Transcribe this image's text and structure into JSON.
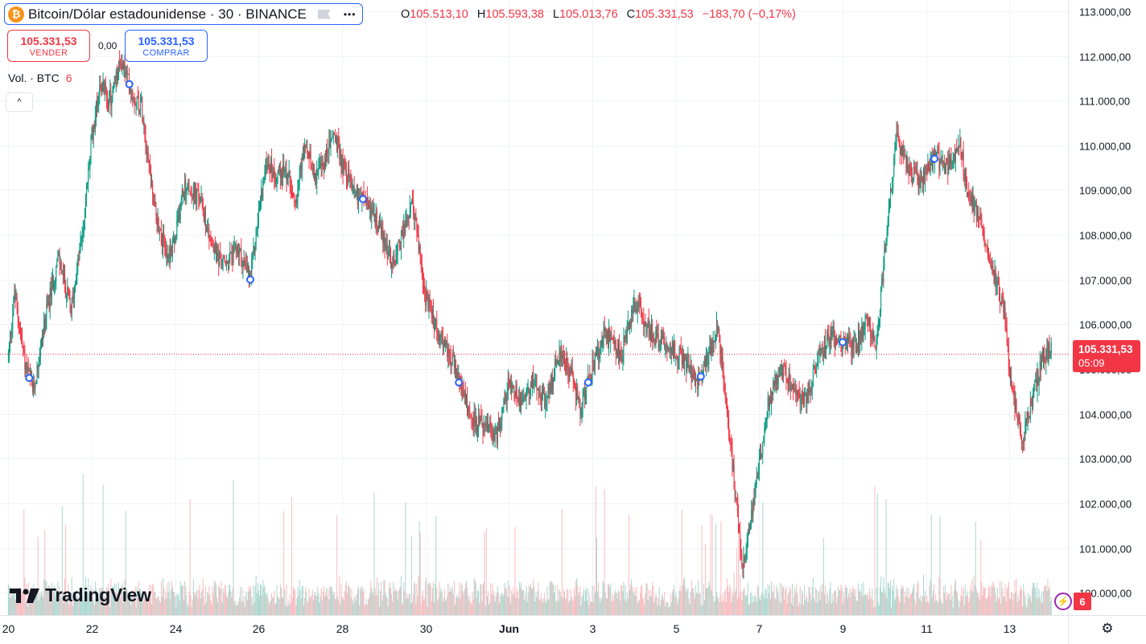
{
  "header": {
    "title": "Bitcoin/Dólar estadounidense · 30 · BINANCE",
    "btc_glyph": "₿",
    "more_glyph": "•••",
    "ohlc": {
      "o_label": "O",
      "o": "105.513,10",
      "h_label": "H",
      "h": "105.593,38",
      "l_label": "L",
      "l": "105.013,76",
      "c_label": "C",
      "c": "105.331,53",
      "change": "−183,70 (−0,17%)"
    }
  },
  "trade": {
    "sell_price": "105.331,53",
    "sell_label": "VENDER",
    "spread": "0,00",
    "buy_price": "105.331,53",
    "buy_label": "COMPRAR"
  },
  "volume_legend": {
    "label": "Vol. · BTC",
    "value": "6"
  },
  "collapse_glyph": "^",
  "last_price": {
    "price": "105.331,53",
    "countdown": "05:09",
    "value": 105331.53
  },
  "alerts": {
    "icon": "alert-clock-icon",
    "glyph": "⚡",
    "count": "6"
  },
  "settings_glyph": "⚙",
  "branding": {
    "logo_text": "TradingView"
  },
  "colors": {
    "up": "#089981",
    "down": "#f23645",
    "up_vol": "#8fc9bf",
    "down_vol": "#f5a6aa",
    "accent": "#2962ff"
  },
  "chart_data": {
    "type": "line",
    "title": "",
    "xlabel": "",
    "ylabel": "",
    "ylim": [
      99500,
      113250
    ],
    "y_ticks": [
      "100.000,00",
      "101.000,00",
      "102.000,00",
      "103.000,00",
      "104.000,00",
      "105.000,00",
      "106.000,00",
      "107.000,00",
      "108.000,00",
      "109.000,00",
      "110.000,00",
      "111.000,00",
      "112.000,00",
      "113.000,00"
    ],
    "y_tick_values": [
      100000,
      101000,
      102000,
      103000,
      104000,
      105000,
      106000,
      107000,
      108000,
      109000,
      110000,
      111000,
      112000,
      113000
    ],
    "x_ticks": [
      "20",
      "22",
      "24",
      "26",
      "28",
      "30",
      "Jun",
      "3",
      "5",
      "7",
      "9",
      "11",
      "13"
    ],
    "x_tick_days": [
      0,
      2,
      4,
      6,
      8,
      10,
      12,
      14,
      16,
      18,
      20,
      22,
      24
    ],
    "x_range_days": [
      -0.2,
      25.4
    ],
    "series": [
      {
        "x_days": [
          0,
          0.15,
          0.4,
          0.6,
          0.9,
          1.2,
          1.5,
          1.8,
          2.0,
          2.2,
          2.45,
          2.7,
          3.0,
          3.2,
          3.5,
          3.8,
          4.0,
          4.2,
          4.6,
          4.9,
          5.2,
          5.5,
          5.8,
          6.0,
          6.2,
          6.4,
          6.6,
          6.9,
          7.1,
          7.4,
          7.6,
          7.8,
          8.0,
          8.3,
          8.6,
          8.9,
          9.2,
          9.5,
          9.7,
          10.0,
          10.3,
          10.6,
          10.8,
          11.1,
          11.4,
          11.7,
          12.0,
          12.3,
          12.6,
          12.9,
          13.2,
          13.5,
          13.7,
          14.0,
          14.3,
          14.7,
          15.0,
          15.4,
          15.7,
          16.0,
          16.3,
          16.5,
          16.8,
          17.0,
          17.3,
          17.6,
          17.9,
          18.2,
          18.5,
          18.8,
          19.1,
          19.4,
          19.7,
          20.0,
          20.3,
          20.6,
          20.8,
          21.0,
          21.3,
          21.6,
          21.9,
          22.2,
          22.5,
          22.8,
          23.0,
          23.3,
          23.6,
          23.9,
          24.0,
          24.1,
          24.3,
          24.6,
          24.8,
          25.0
        ],
        "close": [
          105300,
          106700,
          105100,
          104500,
          106200,
          107500,
          106300,
          108200,
          110200,
          111400,
          111000,
          111900,
          111100,
          110900,
          108600,
          107500,
          107900,
          109100,
          108800,
          107700,
          107300,
          107700,
          107000,
          108500,
          109700,
          109300,
          109500,
          108900,
          109900,
          109300,
          109700,
          110300,
          109600,
          109000,
          108700,
          108200,
          107300,
          108200,
          108700,
          106600,
          105800,
          105300,
          104700,
          103900,
          103700,
          103500,
          104700,
          104300,
          104800,
          104200,
          105400,
          104900,
          104100,
          105000,
          105800,
          105300,
          106500,
          105800,
          105600,
          105400,
          105100,
          104600,
          105300,
          106000,
          103400,
          100600,
          102200,
          104200,
          105000,
          104600,
          104300,
          105200,
          105800,
          105600,
          105500,
          106200,
          105400,
          107600,
          110200,
          109400,
          109200,
          109700,
          109500,
          110100,
          108900,
          108400,
          107200,
          106200,
          104800,
          104300,
          103400,
          104500,
          105300,
          105400
        ]
      }
    ]
  }
}
